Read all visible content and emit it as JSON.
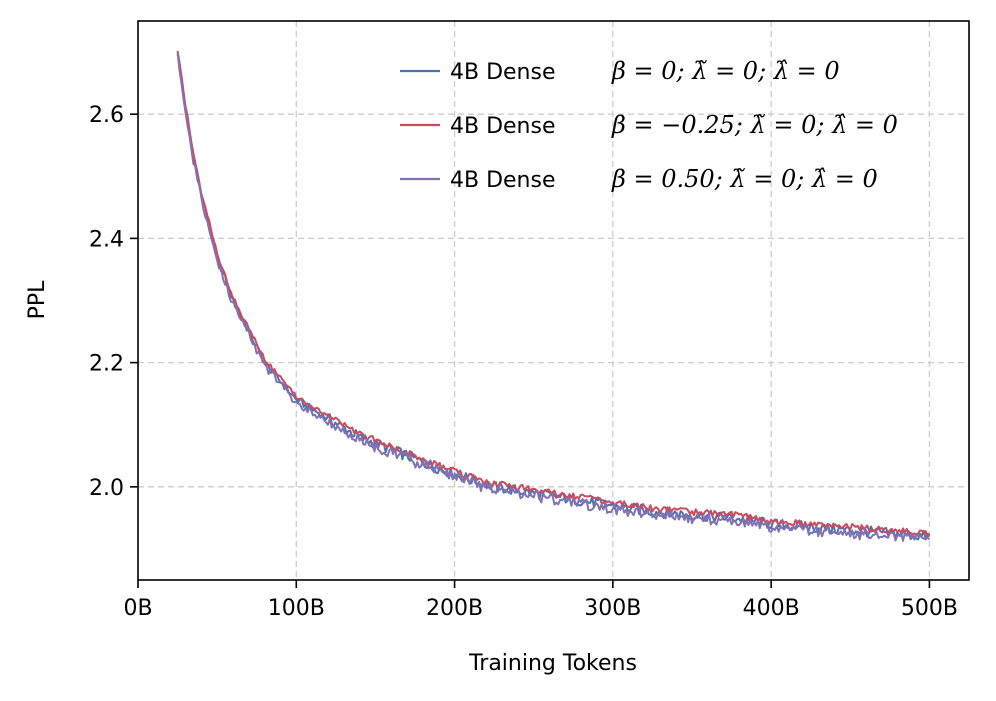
{
  "chart_data": {
    "type": "line",
    "xlabel": "Training Tokens",
    "ylabel": "PPL",
    "xlim": [
      0,
      525
    ],
    "ylim": [
      1.85,
      2.75
    ],
    "x_ticks": [
      0,
      100,
      200,
      300,
      400,
      500
    ],
    "x_tick_labels": [
      "0B",
      "100B",
      "200B",
      "300B",
      "400B",
      "500B"
    ],
    "y_ticks": [
      2.0,
      2.2,
      2.4,
      2.6
    ],
    "y_tick_labels": [
      "2.0",
      "2.2",
      "2.4",
      "2.6"
    ],
    "grid": true,
    "legend_position": "top-right",
    "x": [
      25,
      30,
      35,
      40,
      45,
      50,
      60,
      70,
      80,
      90,
      100,
      120,
      140,
      160,
      180,
      200,
      225,
      250,
      275,
      300,
      325,
      350,
      375,
      400,
      425,
      450,
      475,
      500
    ],
    "series": [
      {
        "name_prefix": "4B Dense",
        "name_math": "β = 0;  λ̃ = 0;  λ̂ = 0",
        "color": "#4c72b0",
        "values": [
          2.7,
          2.61,
          2.53,
          2.47,
          2.42,
          2.37,
          2.3,
          2.25,
          2.2,
          2.17,
          2.14,
          2.11,
          2.08,
          2.06,
          2.04,
          2.02,
          2.0,
          1.99,
          1.98,
          1.97,
          1.96,
          1.955,
          1.95,
          1.94,
          1.935,
          1.93,
          1.925,
          1.92
        ]
      },
      {
        "name_prefix": "4B Dense",
        "name_math": "β = −0.25;  λ̃ = 0;  λ̂ = 0",
        "color": "#d1495b",
        "values": [
          2.705,
          2.615,
          2.535,
          2.475,
          2.425,
          2.375,
          2.305,
          2.255,
          2.205,
          2.175,
          2.145,
          2.115,
          2.085,
          2.065,
          2.045,
          2.025,
          2.005,
          1.995,
          1.985,
          1.975,
          1.965,
          1.96,
          1.955,
          1.945,
          1.94,
          1.935,
          1.93,
          1.925
        ]
      },
      {
        "name_prefix": "4B Dense",
        "name_math": "β = 0.50;  λ̃ = 0;  λ̂ = 0",
        "color": "#8172b3",
        "values": [
          2.7,
          2.6,
          2.525,
          2.465,
          2.415,
          2.365,
          2.295,
          2.245,
          2.195,
          2.165,
          2.135,
          2.105,
          2.075,
          2.055,
          2.035,
          2.015,
          1.995,
          1.985,
          1.975,
          1.965,
          1.955,
          1.95,
          1.945,
          1.935,
          1.93,
          1.925,
          1.92,
          1.915
        ]
      }
    ]
  }
}
